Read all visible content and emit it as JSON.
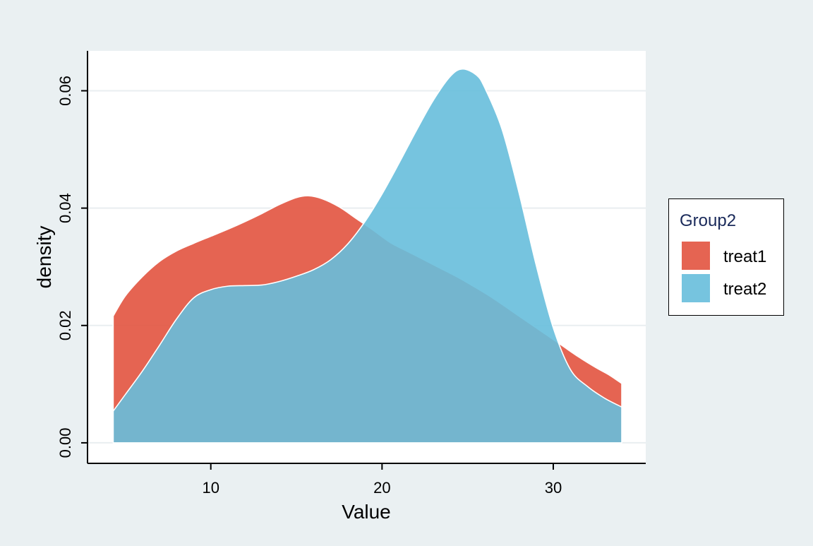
{
  "chart_data": {
    "type": "area",
    "title": "",
    "xlabel": "Value",
    "ylabel": "density",
    "xlim": [
      2.8,
      35.4
    ],
    "ylim": [
      -0.0035,
      0.0668
    ],
    "xticks": [
      {
        "value": 10,
        "label": "10"
      },
      {
        "value": 20,
        "label": "20"
      },
      {
        "value": 30,
        "label": "30"
      }
    ],
    "yticks": [
      {
        "value": 0.0,
        "label": "0.00"
      },
      {
        "value": 0.02,
        "label": "0.02"
      },
      {
        "value": 0.04,
        "label": "0.04"
      },
      {
        "value": 0.06,
        "label": "0.06"
      }
    ],
    "grid": "horizontal",
    "legend": {
      "title": "Group2",
      "position": "right"
    },
    "series": [
      {
        "name": "treat1",
        "color": "#e2533f",
        "opacity": 0.9,
        "x": [
          4.3,
          5,
          6,
          7,
          8,
          9,
          10,
          11,
          12,
          13,
          14,
          15,
          15.7,
          16.5,
          17.5,
          18.5,
          19.5,
          20.5,
          21.5,
          22.5,
          23.5,
          24.5,
          25.5,
          26.5,
          27.5,
          28.5,
          29.5,
          30.5,
          31.5,
          32.5,
          33.3,
          34.0
        ],
        "y": [
          0.0216,
          0.025,
          0.0283,
          0.0309,
          0.0327,
          0.034,
          0.0352,
          0.0364,
          0.0377,
          0.0391,
          0.0406,
          0.0418,
          0.0421,
          0.0416,
          0.0402,
          0.0382,
          0.0362,
          0.0341,
          0.0326,
          0.0311,
          0.0296,
          0.0281,
          0.0264,
          0.0246,
          0.0226,
          0.0206,
          0.0186,
          0.0166,
          0.0146,
          0.0128,
          0.0115,
          0.0101
        ]
      },
      {
        "name": "treat2",
        "color": "#67bedb",
        "opacity": 0.9,
        "x": [
          4.3,
          5,
          6,
          7,
          8,
          9,
          10,
          11,
          12,
          13,
          14,
          15,
          16,
          17,
          18,
          19,
          20,
          21,
          22,
          23,
          24,
          24.7,
          25.5,
          26,
          27,
          28,
          29,
          30,
          31,
          32,
          33,
          34.0
        ],
        "y": [
          0.0054,
          0.0082,
          0.0122,
          0.0166,
          0.0211,
          0.0247,
          0.0261,
          0.0267,
          0.0268,
          0.0269,
          0.0275,
          0.0284,
          0.0295,
          0.0312,
          0.0339,
          0.0377,
          0.0424,
          0.0477,
          0.0532,
          0.0584,
          0.0625,
          0.0637,
          0.0627,
          0.0605,
          0.0535,
          0.0426,
          0.0303,
          0.0196,
          0.0125,
          0.0096,
          0.0076,
          0.0061
        ]
      }
    ]
  }
}
